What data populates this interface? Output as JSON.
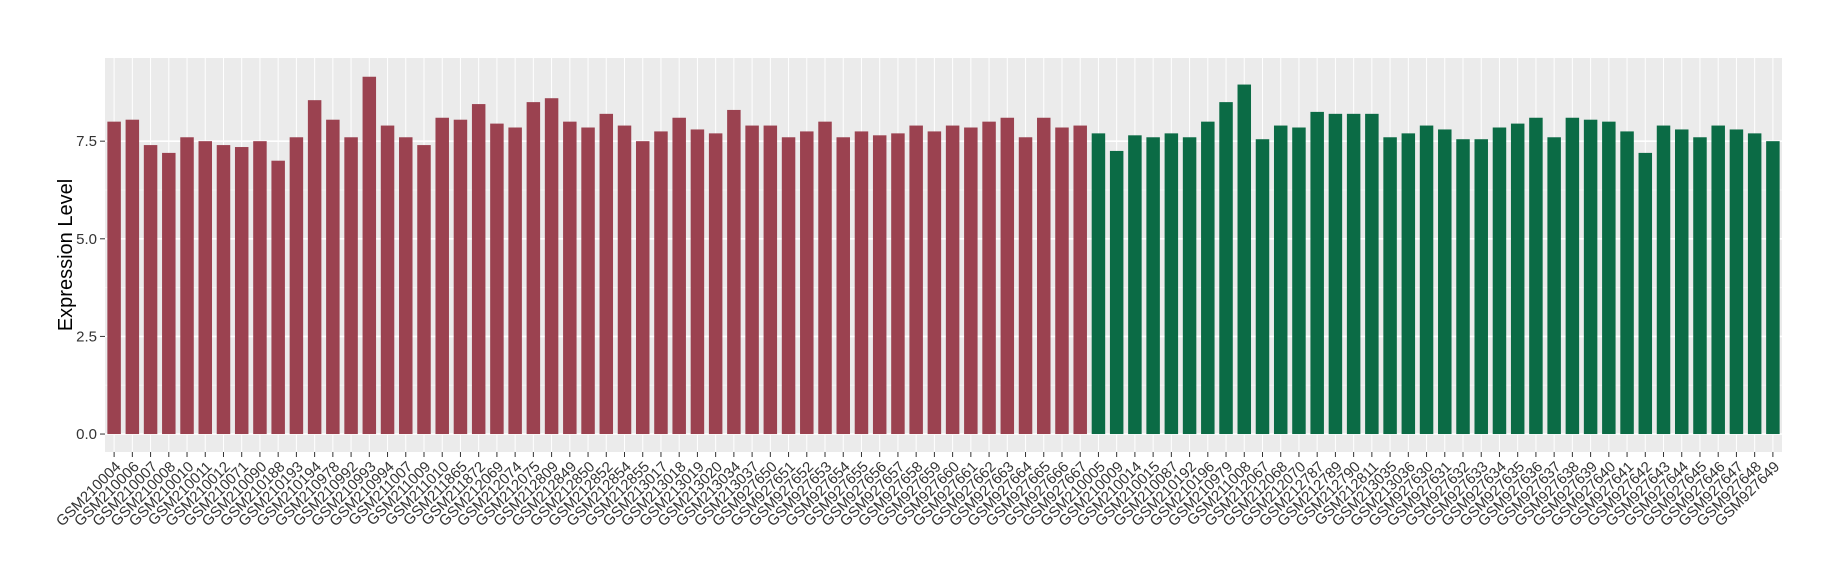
{
  "chart_data": {
    "type": "bar",
    "y_label": "Expression Level",
    "ylim": [
      -0.46,
      9.63
    ],
    "yticks": [
      {
        "value": 0,
        "label": "0.0"
      },
      {
        "value": 2.5,
        "label": "2.5"
      },
      {
        "value": 5,
        "label": "5.0"
      },
      {
        "value": 7.5,
        "label": "7.5"
      }
    ],
    "grid": true,
    "series": [
      {
        "color": "#9b4250",
        "categories": [
          "GSM210004",
          "GSM210006",
          "GSM210007",
          "GSM210008",
          "GSM210010",
          "GSM210011",
          "GSM210012",
          "GSM210071",
          "GSM210090",
          "GSM210188",
          "GSM210193",
          "GSM210194",
          "GSM210978",
          "GSM210992",
          "GSM210993",
          "GSM210994",
          "GSM211007",
          "GSM211009",
          "GSM211010",
          "GSM211865",
          "GSM211872",
          "GSM212069",
          "GSM212074",
          "GSM212075",
          "GSM212809",
          "GSM212849",
          "GSM212850",
          "GSM212852",
          "GSM212854",
          "GSM212855",
          "GSM213017",
          "GSM213018",
          "GSM213019",
          "GSM213020",
          "GSM213034",
          "GSM213037",
          "GSM927650",
          "GSM927651",
          "GSM927652",
          "GSM927653",
          "GSM927654",
          "GSM927655",
          "GSM927656",
          "GSM927657",
          "GSM927658",
          "GSM927659",
          "GSM927660",
          "GSM927661",
          "GSM927662",
          "GSM927663",
          "GSM927664",
          "GSM927665",
          "GSM927666",
          "GSM927667"
        ],
        "values": [
          8.0,
          8.05,
          7.4,
          7.2,
          7.6,
          7.5,
          7.4,
          7.35,
          7.5,
          7.0,
          7.6,
          8.55,
          8.05,
          7.6,
          9.15,
          7.9,
          7.6,
          7.4,
          8.1,
          8.05,
          8.45,
          7.95,
          7.85,
          8.5,
          8.6,
          8.0,
          7.85,
          8.2,
          7.9,
          7.5,
          7.75,
          8.1,
          7.8,
          7.7,
          8.3,
          7.9,
          7.9,
          7.6,
          7.75,
          8.0,
          7.6,
          7.75,
          7.65,
          7.7,
          7.9,
          7.75,
          7.9,
          7.85,
          8.0,
          8.1,
          7.6,
          8.1,
          7.85,
          7.9
        ]
      },
      {
        "color": "#0b6b45",
        "categories": [
          "GSM210005",
          "GSM210009",
          "GSM210014",
          "GSM210015",
          "GSM210087",
          "GSM210192",
          "GSM210196",
          "GSM210979",
          "GSM211008",
          "GSM212067",
          "GSM212068",
          "GSM212070",
          "GSM212787",
          "GSM212789",
          "GSM212790",
          "GSM212811",
          "GSM213035",
          "GSM213036",
          "GSM927630",
          "GSM927631",
          "GSM927632",
          "GSM927633",
          "GSM927634",
          "GSM927635",
          "GSM927636",
          "GSM927637",
          "GSM927638",
          "GSM927639",
          "GSM927640",
          "GSM927641",
          "GSM927642",
          "GSM927643",
          "GSM927644",
          "GSM927645",
          "GSM927646",
          "GSM927647",
          "GSM927648",
          "GSM927649"
        ],
        "values": [
          7.7,
          7.25,
          7.65,
          7.6,
          7.7,
          7.6,
          8.0,
          8.5,
          8.95,
          7.55,
          7.9,
          7.85,
          8.25,
          8.2,
          8.2,
          8.2,
          7.6,
          7.7,
          7.9,
          7.8,
          7.55,
          7.55,
          7.85,
          7.95,
          8.1,
          7.6,
          8.1,
          8.05,
          8.0,
          7.75,
          7.2,
          7.9,
          7.8,
          7.6,
          7.9,
          7.8,
          7.7,
          7.5
        ]
      }
    ]
  }
}
